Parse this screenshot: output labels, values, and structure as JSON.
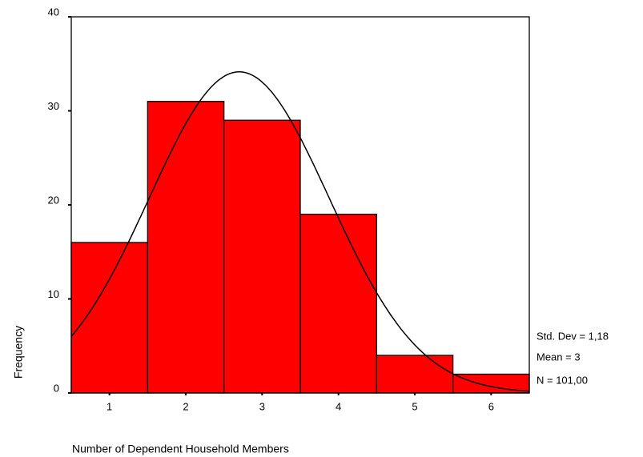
{
  "chart_data": {
    "type": "histogram",
    "x_label": "Number of Dependent Household Members",
    "y_label": "Frequency",
    "bins": [
      0.5,
      1.5,
      2.5,
      3.5,
      4.5,
      5.5,
      6.5
    ],
    "values": [
      16,
      31,
      29,
      19,
      4,
      2
    ],
    "color": "#ff0000",
    "xlim": [
      0.5,
      6.5
    ],
    "xticks": [
      1,
      2,
      3,
      4,
      5,
      6
    ],
    "ylim": [
      0,
      40
    ],
    "yticks": [
      0,
      10,
      20,
      30,
      40
    ],
    "curve": {
      "mean": 2.7,
      "std_dev": 1.18,
      "n": 101
    },
    "stats": [
      "Std. Dev = 1,18",
      "Mean = 3",
      "N = 101,00"
    ]
  }
}
